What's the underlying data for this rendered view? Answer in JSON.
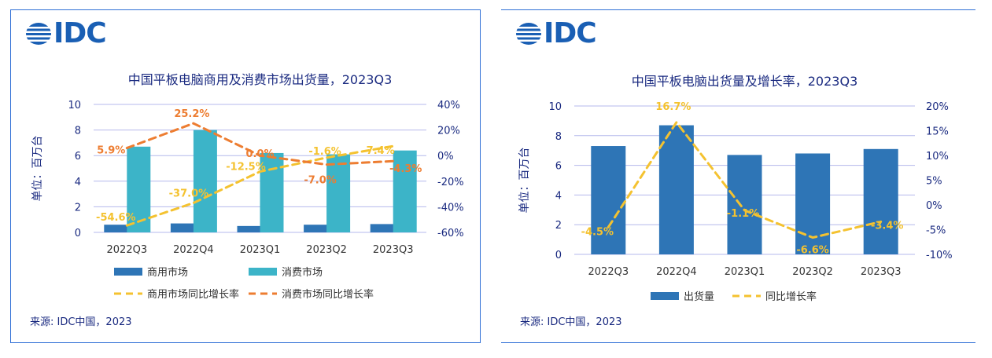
{
  "brand": {
    "logo_text": "IDC",
    "color": "#1a5fb4"
  },
  "colors": {
    "commercial": "#2e75b6",
    "consumer": "#3cb4c8",
    "shipments": "#2e75b6",
    "line_yellow": "#f4c230",
    "line_orange": "#ed7d31",
    "axis_text": "#1a2a80",
    "grid": "#b4b8ec"
  },
  "charts": [
    {
      "title": "中国平板电脑商用及消费市场出货量，2023Q3",
      "ylabel": "单位：百万台",
      "source": "来源: IDC中国，2023"
    },
    {
      "title": "中国平板电脑出货量及增长率，2023Q3",
      "ylabel": "单位：百万台",
      "source": "来源: IDC中国，2023"
    }
  ],
  "chart_data": [
    {
      "type": "bar",
      "title": "中国平板电脑商用及消费市场出货量，2023Q3",
      "ylabel": "单位：百万台",
      "categories": [
        "2022Q3",
        "2022Q4",
        "2023Q1",
        "2023Q2",
        "2023Q3"
      ],
      "ylim": [
        0,
        10
      ],
      "yticks": [
        0,
        2,
        4,
        6,
        8,
        10
      ],
      "y2lim": [
        -60,
        40
      ],
      "y2ticks": [
        "-60%",
        "-40%",
        "-20%",
        "0%",
        "20%",
        "40%"
      ],
      "grid": true,
      "legend": "bottom",
      "series": [
        {
          "name": "商用市场",
          "kind": "bar",
          "axis": "left",
          "values": [
            0.6,
            0.7,
            0.5,
            0.6,
            0.65
          ]
        },
        {
          "name": "消费市场",
          "kind": "bar",
          "axis": "left",
          "values": [
            6.7,
            8.0,
            6.2,
            6.1,
            6.4
          ]
        },
        {
          "name": "商用市场同比增长率",
          "kind": "line",
          "axis": "right",
          "values": [
            -54.6,
            -37.0,
            -12.5,
            -1.6,
            7.4
          ],
          "labels": [
            "-54.6%",
            "-37.0%",
            "-12.5%",
            "-1.6%",
            "7.4%"
          ]
        },
        {
          "name": "消费市场同比增长率",
          "kind": "line",
          "axis": "right",
          "values": [
            5.9,
            25.2,
            0.0,
            -7.0,
            -4.3
          ],
          "labels": [
            "5.9%",
            "25.2%",
            "0.0%",
            "-7.0%",
            "-4.3%"
          ]
        }
      ]
    },
    {
      "type": "bar",
      "title": "中国平板电脑出货量及增长率，2023Q3",
      "ylabel": "单位：百万台",
      "categories": [
        "2022Q3",
        "2022Q4",
        "2023Q1",
        "2023Q2",
        "2023Q3"
      ],
      "ylim": [
        0,
        10
      ],
      "yticks": [
        0,
        2,
        4,
        6,
        8,
        10
      ],
      "y2lim": [
        -10,
        20
      ],
      "y2ticks": [
        "-10%",
        "-5%",
        "0%",
        "5%",
        "10%",
        "15%",
        "20%"
      ],
      "grid": true,
      "legend": "bottom",
      "series": [
        {
          "name": "出货量",
          "kind": "bar",
          "axis": "left",
          "values": [
            7.3,
            8.7,
            6.7,
            6.8,
            7.1
          ]
        },
        {
          "name": "同比增长率",
          "kind": "line",
          "axis": "right",
          "values": [
            -4.5,
            16.7,
            -1.1,
            -6.6,
            -3.4
          ],
          "labels": [
            "-4.5%",
            "16.7%",
            "-1.1%",
            "-6.6%",
            "-3.4%"
          ]
        }
      ]
    }
  ]
}
